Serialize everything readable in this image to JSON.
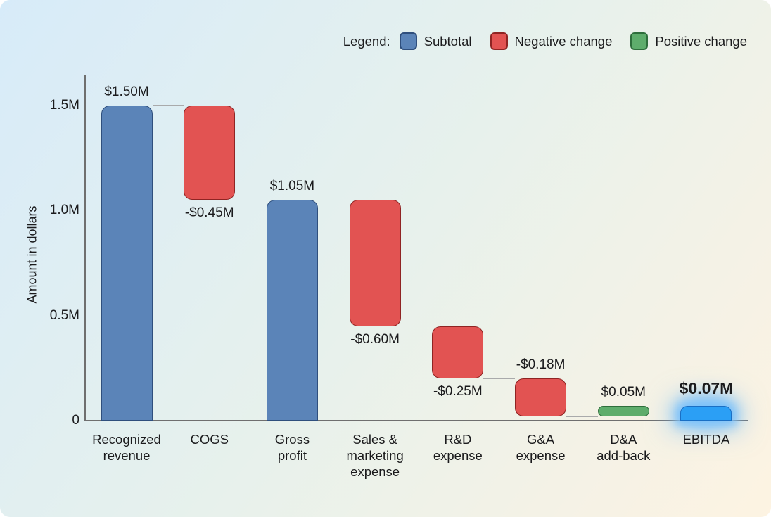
{
  "colors": {
    "background_start": "#d7ebf9",
    "background_mid": "#e7f1ec",
    "background_end": "#fdf3e2",
    "subtotal": "#5b84b8",
    "subtotal_border": "#2f4f7d",
    "negative": "#e25352",
    "negative_border": "#8f2423",
    "positive": "#5ead6c",
    "positive_border": "#2e6e3c",
    "total": "#2b9ff5",
    "total_border": "#1a6fc4",
    "highlight_glow": "#7bc1fa",
    "connector": "#a9aaab",
    "axis": "#6f6f6f",
    "text": "#1b1b1d"
  },
  "legend": {
    "title": "Legend:",
    "items": [
      {
        "label": "Subtotal",
        "kind": "subtotal"
      },
      {
        "label": "Negative change",
        "kind": "negative"
      },
      {
        "label": "Positive change",
        "kind": "positive"
      }
    ]
  },
  "chart_data": {
    "type": "bar",
    "subtype": "waterfall",
    "ylabel": "Amount in dollars",
    "xlabel": "",
    "ylim_millions": [
      0,
      1.5
    ],
    "grid": false,
    "legend_position": "top-right",
    "yticks": [
      {
        "label": "0",
        "value": 0
      },
      {
        "label": "0.5M",
        "value": 0.5
      },
      {
        "label": "1.0M",
        "value": 1.0
      },
      {
        "label": "1.5M",
        "value": 1.5
      }
    ],
    "categories": [
      "Recognized revenue",
      "COGS",
      "Gross profit",
      "Sales & marketing expense",
      "R&D expense",
      "G&A expense",
      "D&A add-back",
      "EBITDA"
    ],
    "steps": [
      {
        "id": "recognized-revenue",
        "category_lines": [
          "Recognized",
          "revenue"
        ],
        "kind": "subtotal",
        "value": 1.5,
        "start": 0,
        "end": 1.5,
        "value_label": "$1.50M",
        "value_label_position": "above"
      },
      {
        "id": "cogs",
        "category_lines": [
          "COGS"
        ],
        "kind": "negative",
        "value": -0.45,
        "start": 1.5,
        "end": 1.05,
        "value_label": "-$0.45M",
        "value_label_position": "below"
      },
      {
        "id": "gross-profit",
        "category_lines": [
          "Gross",
          "profit"
        ],
        "kind": "subtotal",
        "value": 1.05,
        "start": 0,
        "end": 1.05,
        "value_label": "$1.05M",
        "value_label_position": "above"
      },
      {
        "id": "sales-marketing-expense",
        "category_lines": [
          "Sales &",
          "marketing",
          "expense"
        ],
        "kind": "negative",
        "value": -0.6,
        "start": 1.05,
        "end": 0.45,
        "value_label": "-$0.60M",
        "value_label_position": "below"
      },
      {
        "id": "rd-expense",
        "category_lines": [
          "R&D",
          "expense"
        ],
        "kind": "negative",
        "value": -0.25,
        "start": 0.45,
        "end": 0.2,
        "value_label": "-$0.25M",
        "value_label_position": "below"
      },
      {
        "id": "ga-expense",
        "category_lines": [
          "G&A",
          "expense"
        ],
        "kind": "negative",
        "value": -0.18,
        "start": 0.2,
        "end": 0.02,
        "value_label": "-$0.18M",
        "value_label_position": "above"
      },
      {
        "id": "da-add-back",
        "category_lines": [
          "D&A",
          "add-back"
        ],
        "kind": "positive",
        "value": 0.05,
        "start": 0.02,
        "end": 0.07,
        "value_label": "$0.05M",
        "value_label_position": "above",
        "connector_after": false
      },
      {
        "id": "ebitda",
        "category_lines": [
          "EBITDA"
        ],
        "kind": "total",
        "value": 0.07,
        "start": 0,
        "end": 0.07,
        "value_label": "$0.07M",
        "value_label_position": "above",
        "highlighted": true
      }
    ]
  }
}
